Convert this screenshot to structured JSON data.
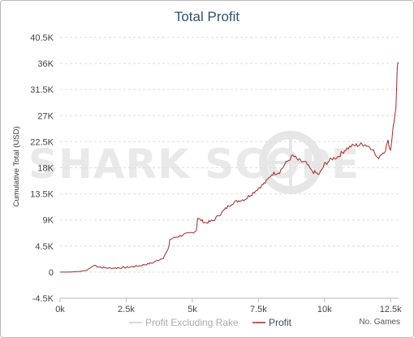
{
  "chart_data": {
    "type": "line",
    "title": "Total Profit",
    "ylabel": "Cumulative Total (USD)",
    "xlabel": "",
    "xlim": [
      0,
      12800
    ],
    "ylim": [
      -4500,
      40500
    ],
    "x_ticks": [
      0,
      2500,
      5000,
      7500,
      10000,
      12500
    ],
    "x_tick_labels": [
      "0k",
      "2.5k",
      "5k",
      "7.5k",
      "10k",
      "12.5k"
    ],
    "y_ticks": [
      -4500,
      0,
      4500,
      9000,
      13500,
      18000,
      22500,
      27000,
      31500,
      36000,
      40500
    ],
    "y_tick_labels": [
      "-4.5K",
      "0",
      "4.5K",
      "9K",
      "13.5K",
      "18K",
      "22.5K",
      "27K",
      "31.5K",
      "36K",
      "40.5K"
    ],
    "grid": "horizontal dashed",
    "legend": "bottom-center",
    "series": [
      {
        "name": "Profit Excluding Rake",
        "color": "#cccccc",
        "x": [],
        "y": []
      },
      {
        "name": "Profit",
        "color": "#a02a2a",
        "x": [
          0,
          300,
          700,
          1000,
          1300,
          1400,
          1600,
          1800,
          2000,
          2500,
          3000,
          3500,
          3900,
          4100,
          4150,
          4300,
          4500,
          4800,
          5000,
          5150,
          5200,
          5500,
          5800,
          6000,
          6300,
          6500,
          6800,
          7000,
          7300,
          7500,
          7800,
          8000,
          8300,
          8500,
          8700,
          8800,
          9000,
          9300,
          9500,
          9800,
          10000,
          10300,
          10500,
          10800,
          11000,
          11200,
          11500,
          11800,
          12000,
          12100,
          12300,
          12400,
          12500,
          12600,
          12650,
          12700,
          12750,
          12800
        ],
        "y": [
          0,
          0,
          100,
          300,
          1200,
          1000,
          800,
          700,
          700,
          800,
          1100,
          1600,
          2500,
          4000,
          5600,
          5900,
          6200,
          6600,
          6800,
          7200,
          9300,
          8500,
          8900,
          9800,
          11100,
          11900,
          12400,
          12600,
          13700,
          14500,
          15600,
          16900,
          17300,
          18600,
          19600,
          20100,
          19300,
          18800,
          17500,
          16800,
          18600,
          19600,
          19900,
          21200,
          21700,
          21900,
          22100,
          21400,
          19500,
          20200,
          21100,
          22500,
          21000,
          25500,
          26500,
          28500,
          35000,
          36200
        ]
      }
    ]
  },
  "watermark": "SHARK SCOPE",
  "footer": {
    "x_axis_title": "No. Games"
  },
  "colors": {
    "title": "#34506b",
    "grid": "#dddddd",
    "profit": "#a02a2a",
    "profit_excluding_rake": "#cccccc",
    "legend_active_text": "#34506b",
    "legend_inactive_text": "#aaaaaa"
  }
}
